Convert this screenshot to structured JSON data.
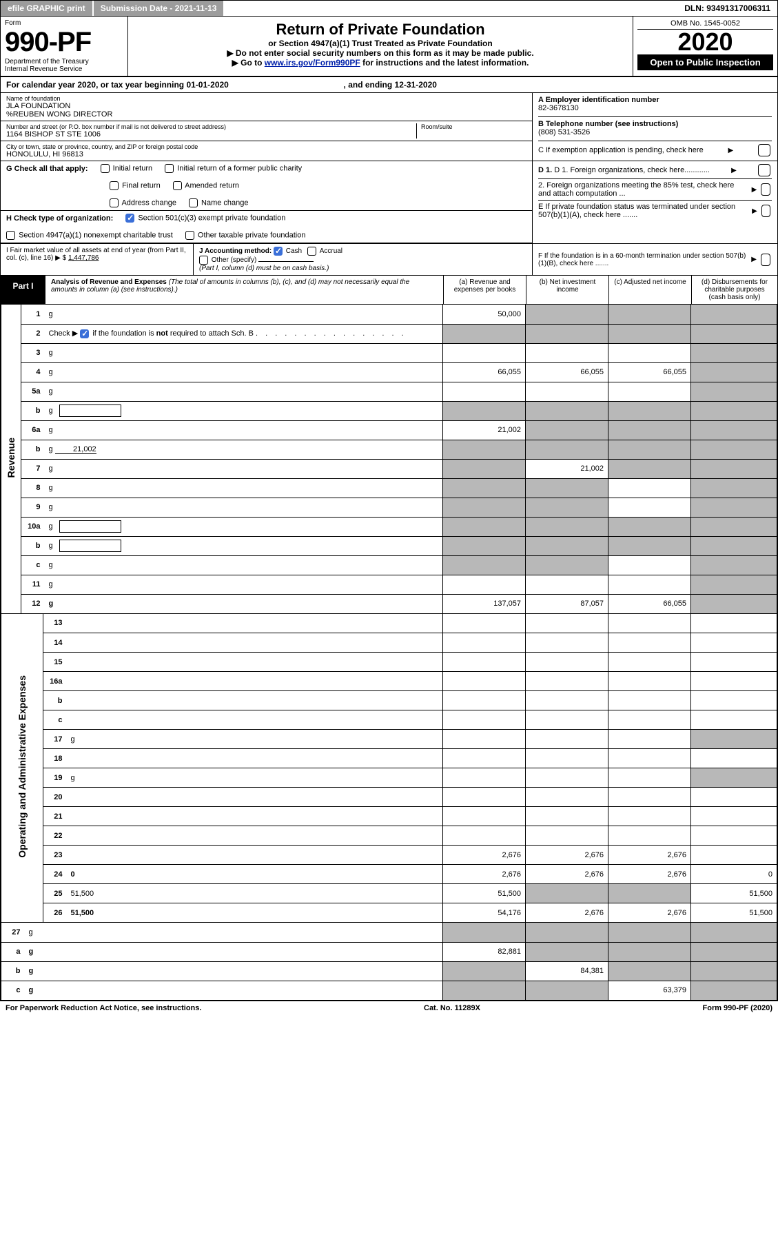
{
  "topbar": {
    "efile": "efile GRAPHIC print",
    "submission_label": "Submission Date - 2021-11-13",
    "dln": "DLN: 93491317006311"
  },
  "header": {
    "form_word": "Form",
    "form_no": "990-PF",
    "dept1": "Department of the Treasury",
    "dept2": "Internal Revenue Service",
    "title": "Return of Private Foundation",
    "subtitle": "or Section 4947(a)(1) Trust Treated as Private Foundation",
    "note1": "Do not enter social security numbers on this form as it may be made public.",
    "note2": "Go to ",
    "note2_link": "www.irs.gov/Form990PF",
    "note2_rest": " for instructions and the latest information.",
    "omb": "OMB No. 1545-0052",
    "year": "2020",
    "open": "Open to Public Inspection"
  },
  "calendar": {
    "prefix": "For calendar year 2020, or tax year beginning ",
    "begin": "01-01-2020",
    "mid": " , and ending ",
    "end": "12-31-2020"
  },
  "ident": {
    "name_lbl": "Name of foundation",
    "name1": "JLA FOUNDATION",
    "name2": "%REUBEN WONG DIRECTOR",
    "addr_lbl": "Number and street (or P.O. box number if mail is not delivered to street address)",
    "addr": "1164 BISHOP ST STE 1006",
    "room_lbl": "Room/suite",
    "city_lbl": "City or town, state or province, country, and ZIP or foreign postal code",
    "city": "HONOLULU, HI  96813",
    "ein_lbl": "A Employer identification number",
    "ein": "82-3678130",
    "tel_lbl": "B Telephone number (see instructions)",
    "tel": "(808) 531-3526",
    "c_lbl": "C If exemption application is pending, check here",
    "d1_lbl": "D 1. Foreign organizations, check here............",
    "d2_lbl": "2. Foreign organizations meeting the 85% test, check here and attach computation ...",
    "e_lbl": "E  If private foundation status was terminated under section 507(b)(1)(A), check here .......",
    "f_lbl": "F  If the foundation is in a 60-month termination under section 507(b)(1)(B), check here .......",
    "g_lbl": "G Check all that apply:",
    "g_opts": [
      "Initial return",
      "Initial return of a former public charity",
      "Final return",
      "Amended return",
      "Address change",
      "Name change"
    ],
    "h_lbl": "H Check type of organization:",
    "h1": "Section 501(c)(3) exempt private foundation",
    "h2": "Section 4947(a)(1) nonexempt charitable trust",
    "h3": "Other taxable private foundation",
    "i_lbl": "I Fair market value of all assets at end of year (from Part II, col. (c), line 16) ▶ $",
    "i_val": "1,447,786",
    "j_lbl": "J Accounting method:",
    "j_cash": "Cash",
    "j_accrual": "Accrual",
    "j_other": "Other (specify)",
    "j_note": "(Part I, column (d) must be on cash basis.)"
  },
  "part1": {
    "label": "Part I",
    "title": "Analysis of Revenue and Expenses",
    "title_note": " (The total of amounts in columns (b), (c), and (d) may not necessarily equal the amounts in column (a) (see instructions).)",
    "col_a": "(a)  Revenue and expenses per books",
    "col_b": "(b)  Net investment income",
    "col_c": "(c)  Adjusted net income",
    "col_d": "(d)  Disbursements for charitable purposes (cash basis only)"
  },
  "side": {
    "rev": "Revenue",
    "exp": "Operating and Administrative Expenses"
  },
  "rows": [
    {
      "n": "1",
      "d": "g",
      "a": "50,000",
      "b": "g",
      "c": "g"
    },
    {
      "n": "2",
      "d": "g",
      "a": "g",
      "b": "g",
      "c": "g",
      "chk": true
    },
    {
      "n": "3",
      "d": "g",
      "a": "",
      "b": "",
      "c": ""
    },
    {
      "n": "4",
      "d": "g",
      "a": "66,055",
      "b": "66,055",
      "c": "66,055"
    },
    {
      "n": "5a",
      "d": "g",
      "a": "",
      "b": "",
      "c": ""
    },
    {
      "n": "b",
      "d": "g",
      "a": "g",
      "b": "g",
      "c": "g",
      "mini": true
    },
    {
      "n": "6a",
      "d": "g",
      "a": "21,002",
      "b": "g",
      "c": "g"
    },
    {
      "n": "b",
      "d": "g",
      "a": "g",
      "b": "g",
      "c": "g",
      "miniVal": "21,002"
    },
    {
      "n": "7",
      "d": "g",
      "a": "g",
      "b": "21,002",
      "c": "g"
    },
    {
      "n": "8",
      "d": "g",
      "a": "g",
      "b": "g",
      "c": ""
    },
    {
      "n": "9",
      "d": "g",
      "a": "g",
      "b": "g",
      "c": ""
    },
    {
      "n": "10a",
      "d": "g",
      "a": "g",
      "b": "g",
      "c": "g",
      "mini": true
    },
    {
      "n": "b",
      "d": "g",
      "a": "g",
      "b": "g",
      "c": "g",
      "mini": true
    },
    {
      "n": "c",
      "d": "g",
      "a": "g",
      "b": "g",
      "c": ""
    },
    {
      "n": "11",
      "d": "g",
      "a": "",
      "b": "",
      "c": ""
    },
    {
      "n": "12",
      "d": "g",
      "a": "137,057",
      "b": "87,057",
      "c": "66,055",
      "bold": true
    }
  ],
  "rows2": [
    {
      "n": "13",
      "d": "",
      "a": "",
      "b": "",
      "c": ""
    },
    {
      "n": "14",
      "d": "",
      "a": "",
      "b": "",
      "c": ""
    },
    {
      "n": "15",
      "d": "",
      "a": "",
      "b": "",
      "c": ""
    },
    {
      "n": "16a",
      "d": "",
      "a": "",
      "b": "",
      "c": ""
    },
    {
      "n": "b",
      "d": "",
      "a": "",
      "b": "",
      "c": ""
    },
    {
      "n": "c",
      "d": "",
      "a": "",
      "b": "",
      "c": ""
    },
    {
      "n": "17",
      "d": "g",
      "a": "",
      "b": "",
      "c": ""
    },
    {
      "n": "18",
      "d": "",
      "a": "",
      "b": "",
      "c": ""
    },
    {
      "n": "19",
      "d": "g",
      "a": "",
      "b": "",
      "c": ""
    },
    {
      "n": "20",
      "d": "",
      "a": "",
      "b": "",
      "c": ""
    },
    {
      "n": "21",
      "d": "",
      "a": "",
      "b": "",
      "c": ""
    },
    {
      "n": "22",
      "d": "",
      "a": "",
      "b": "",
      "c": ""
    },
    {
      "n": "23",
      "d": "",
      "a": "2,676",
      "b": "2,676",
      "c": "2,676"
    },
    {
      "n": "24",
      "d": "0",
      "a": "2,676",
      "b": "2,676",
      "c": "2,676",
      "bold": true
    },
    {
      "n": "25",
      "d": "51,500",
      "a": "51,500",
      "b": "g",
      "c": "g"
    },
    {
      "n": "26",
      "d": "51,500",
      "a": "54,176",
      "b": "2,676",
      "c": "2,676",
      "bold": true
    }
  ],
  "rows3": [
    {
      "n": "27",
      "d": "g",
      "a": "g",
      "b": "g",
      "c": "g"
    },
    {
      "n": "a",
      "d": "g",
      "a": "82,881",
      "b": "g",
      "c": "g",
      "bold": true
    },
    {
      "n": "b",
      "d": "g",
      "a": "g",
      "b": "84,381",
      "c": "g",
      "bold": true
    },
    {
      "n": "c",
      "d": "g",
      "a": "g",
      "b": "g",
      "c": "63,379",
      "bold": true
    }
  ],
  "footer": {
    "left": "For Paperwork Reduction Act Notice, see instructions.",
    "mid": "Cat. No. 11289X",
    "right": "Form 990-PF (2020)"
  }
}
